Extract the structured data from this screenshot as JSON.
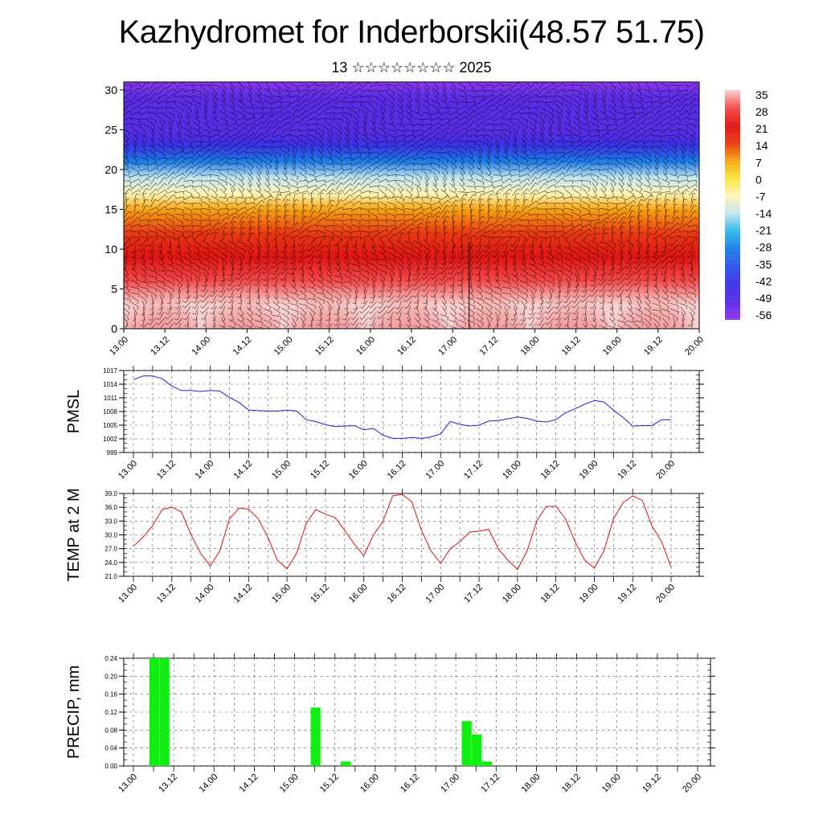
{
  "header": {
    "title": "Kazhydromet for Inderborskii(48.57 51.75)",
    "subtitle": "13 ☆☆☆☆☆☆☆☆ 2025"
  },
  "colors": {
    "pmsl_line": "#1f1fd6",
    "temp_line": "#e01010",
    "precip_bar": "#10f010",
    "wind_barbs": "#000000"
  },
  "chart_data": [
    {
      "type": "heatmap",
      "name": "vertical cross-section",
      "title": "",
      "xlabel": "",
      "ylabel": "",
      "x_tick_labels": [
        "13.00",
        "13.12",
        "14.00",
        "14.12",
        "15.00",
        "15.12",
        "16.00",
        "16.12",
        "17.00",
        "17.12",
        "18.00",
        "18.12",
        "19.00",
        "19.12",
        "20.00"
      ],
      "yticks": [
        0,
        5,
        10,
        15,
        20,
        25,
        30
      ],
      "ylim": [
        0,
        31
      ],
      "colorbar": {
        "labels": [
          "35",
          "28",
          "21",
          "14",
          "7",
          "0",
          "-7",
          "-14",
          "-21",
          "-28",
          "-35",
          "-42",
          "-49",
          "-56"
        ],
        "colors": [
          "#fbd0d0",
          "#f44a4a",
          "#e01414",
          "#e83a12",
          "#f7a512",
          "#f9e63c",
          "#fdf7b8",
          "#c2e3f2",
          "#2fb8e8",
          "#1c7ee8",
          "#2f53ea",
          "#3b32e6",
          "#5a2ce6",
          "#8e36ee"
        ]
      },
      "temperature_profile": [
        {
          "level": 0,
          "value": 33
        },
        {
          "level": 3,
          "value": 28
        },
        {
          "level": 6,
          "value": 24
        },
        {
          "level": 9,
          "value": 20
        },
        {
          "level": 12,
          "value": 12
        },
        {
          "level": 15,
          "value": 2
        },
        {
          "level": 17,
          "value": -8
        },
        {
          "level": 19,
          "value": -21
        },
        {
          "level": 21,
          "value": -33
        },
        {
          "level": 23,
          "value": -45
        },
        {
          "level": 25,
          "value": -53
        },
        {
          "level": 27,
          "value": -52
        },
        {
          "level": 29,
          "value": -56
        },
        {
          "level": 31,
          "value": -58
        }
      ]
    },
    {
      "type": "line",
      "name": "pmsl",
      "ylabel": "PMSL",
      "yticks": [
        999,
        1002,
        1005,
        1008,
        1011,
        1014,
        1017
      ],
      "ylim": [
        999,
        1017
      ],
      "x_tick_labels": [
        "13.00",
        "13.12",
        "14.00",
        "14.12",
        "15.00",
        "15.12",
        "16.00",
        "16.12",
        "17.00",
        "17.12",
        "18.00",
        "18.12",
        "19.00",
        "19.12",
        "20.00"
      ],
      "x": [
        0,
        3,
        6,
        9,
        12,
        15,
        18,
        21,
        24,
        27,
        30,
        33,
        36,
        39,
        42,
        45,
        48,
        51,
        54,
        57,
        60,
        63,
        66,
        69,
        72,
        75,
        78,
        81,
        84,
        87,
        90,
        93,
        96,
        99,
        102,
        105,
        108,
        111,
        114,
        117,
        120,
        123,
        126,
        129,
        132,
        135,
        138,
        141,
        144,
        147,
        150,
        153,
        156,
        159,
        162,
        165,
        168
      ],
      "series": [
        {
          "values": [
            1015,
            1015.8,
            1015.8,
            1015.2,
            1013.6,
            1012.6,
            1012.6,
            1012.4,
            1012.6,
            1012.5,
            1011.1,
            1010,
            1008.3,
            1008.2,
            1008.1,
            1008.1,
            1008.3,
            1008.1,
            1006.2,
            1005.8,
            1005.1,
            1004.7,
            1004.8,
            1004.9,
            1004,
            1004.3,
            1002.8,
            1002.1,
            1002.1,
            1002.3,
            1002.1,
            1002.4,
            1003.1,
            1005.8,
            1005.2,
            1004.8,
            1005,
            1005.9,
            1006,
            1006.4,
            1006.8,
            1006.5,
            1005.9,
            1005.7,
            1006.2,
            1007.7,
            1008.6,
            1009.6,
            1010.4,
            1010.1,
            1008.3,
            1006.7,
            1004.8,
            1004.9,
            1004.9,
            1006.2,
            1006.2
          ]
        }
      ]
    },
    {
      "type": "line",
      "name": "temperature",
      "ylabel": "TEMP at 2 M",
      "yticks": [
        "21.0",
        "24.0",
        "27.0",
        "30.0",
        "33.0",
        "36.0",
        "39.0"
      ],
      "ylim": [
        21,
        39
      ],
      "x_tick_labels": [
        "13.00",
        "13.12",
        "14.00",
        "14.12",
        "15.00",
        "15.12",
        "16.00",
        "16.12",
        "17.00",
        "17.12",
        "18.00",
        "18.12",
        "19.00",
        "19.12",
        "20.00"
      ],
      "x": [
        0,
        3,
        6,
        9,
        12,
        15,
        18,
        21,
        24,
        27,
        30,
        33,
        36,
        39,
        42,
        45,
        48,
        51,
        54,
        57,
        60,
        63,
        66,
        69,
        72,
        75,
        78,
        81,
        84,
        87,
        90,
        93,
        96,
        99,
        102,
        105,
        108,
        111,
        114,
        117,
        120,
        123,
        126,
        129,
        132,
        135,
        138,
        141,
        144,
        147,
        150,
        153,
        156,
        159,
        162,
        165,
        168
      ],
      "series": [
        {
          "values": [
            27.5,
            29.5,
            32,
            35.5,
            36,
            35,
            30,
            26,
            23.2,
            26.5,
            33.5,
            35.8,
            35.6,
            33.5,
            29.5,
            24.5,
            22.6,
            26,
            32.5,
            35.5,
            34.5,
            33.8,
            31,
            28,
            25.5,
            30,
            33,
            38.5,
            38.8,
            37.2,
            31,
            26.5,
            23.8,
            27,
            28.5,
            30.6,
            30.8,
            31.2,
            27,
            24.5,
            22.5,
            26.5,
            33,
            36.2,
            36.2,
            33.5,
            28.5,
            24.5,
            22.8,
            26.5,
            33.5,
            37,
            38.5,
            37.5,
            32,
            28.5,
            23
          ]
        }
      ]
    },
    {
      "type": "bar",
      "name": "precipitation",
      "ylabel": "PRECIP, mm",
      "yticks": [
        "0.00",
        "0.04",
        "0.08",
        "0.12",
        "0.16",
        "0.20",
        "0.24"
      ],
      "ylim": [
        0,
        0.24
      ],
      "x_tick_labels": [
        "13.00",
        "13.12",
        "14.00",
        "14.12",
        "15.00",
        "15.12",
        "16.00",
        "16.12",
        "17.00",
        "17.12",
        "18.00",
        "18.12",
        "19.00",
        "19.12",
        "20.00"
      ],
      "bars": [
        {
          "x": 6,
          "value": 0.24
        },
        {
          "x": 9,
          "value": 0.24
        },
        {
          "x": 54,
          "value": 0.13
        },
        {
          "x": 63,
          "value": 0.01
        },
        {
          "x": 99,
          "value": 0.1
        },
        {
          "x": 102,
          "value": 0.07
        },
        {
          "x": 105,
          "value": 0.01
        }
      ]
    }
  ]
}
